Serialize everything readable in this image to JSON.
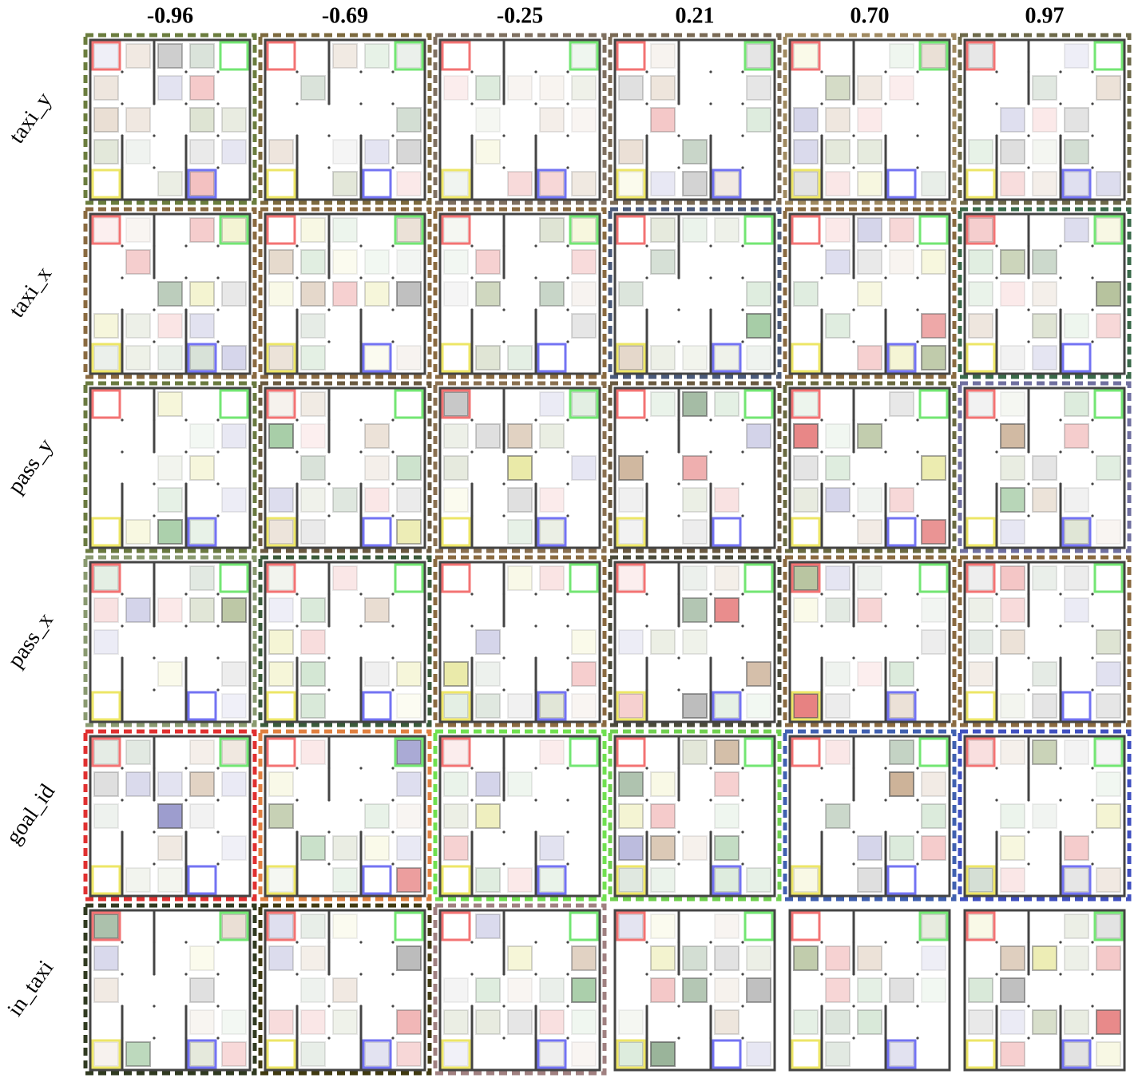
{
  "column_labels": [
    "-0.96",
    "-0.69",
    "-0.25",
    "0.21",
    "0.70",
    "0.97"
  ],
  "row_labels": [
    "taxi_y",
    "taxi_x",
    "pass_y",
    "pass_x",
    "goal_id",
    "in_taxi"
  ]
}
